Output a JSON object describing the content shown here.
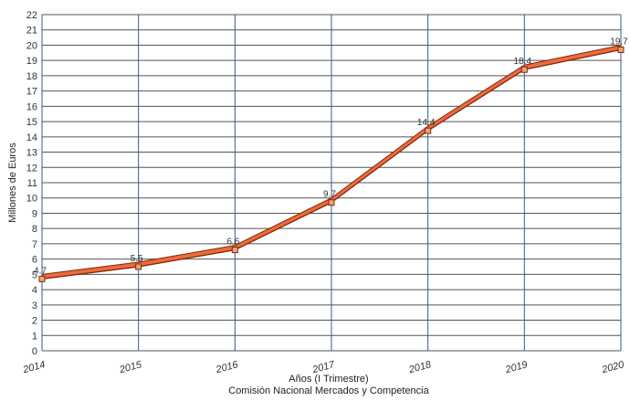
{
  "chart_data": {
    "type": "line",
    "xlabel": "Años (I Trimestre)",
    "source": "Comisión Nacional Mercados y Competencia",
    "ylabel": "Millones de Euros",
    "ylim": [
      0,
      22
    ],
    "yticks": [
      0,
      1,
      2,
      3,
      4,
      5,
      6,
      7,
      8,
      9,
      10,
      11,
      12,
      13,
      14,
      15,
      16,
      17,
      18,
      19,
      20,
      21,
      22
    ],
    "categories": [
      "2014",
      "2015",
      "2016",
      "2017",
      "2018",
      "2019",
      "2020"
    ],
    "series": [
      {
        "values": [
          4.7,
          5.5,
          6.6,
          9.7,
          14.4,
          18.4,
          19.7
        ],
        "labels": [
          "4.7",
          "5.5",
          "6.6",
          "9.7",
          "14.4",
          "18.4",
          "19.7"
        ]
      }
    ],
    "grid": true,
    "colors": {
      "line_fill": "#f06a3a",
      "line_edge": "#7a2a10",
      "grid_vertical": "#3a5a8c",
      "grid_horizontal": "#555555",
      "axis": "#555555"
    }
  }
}
